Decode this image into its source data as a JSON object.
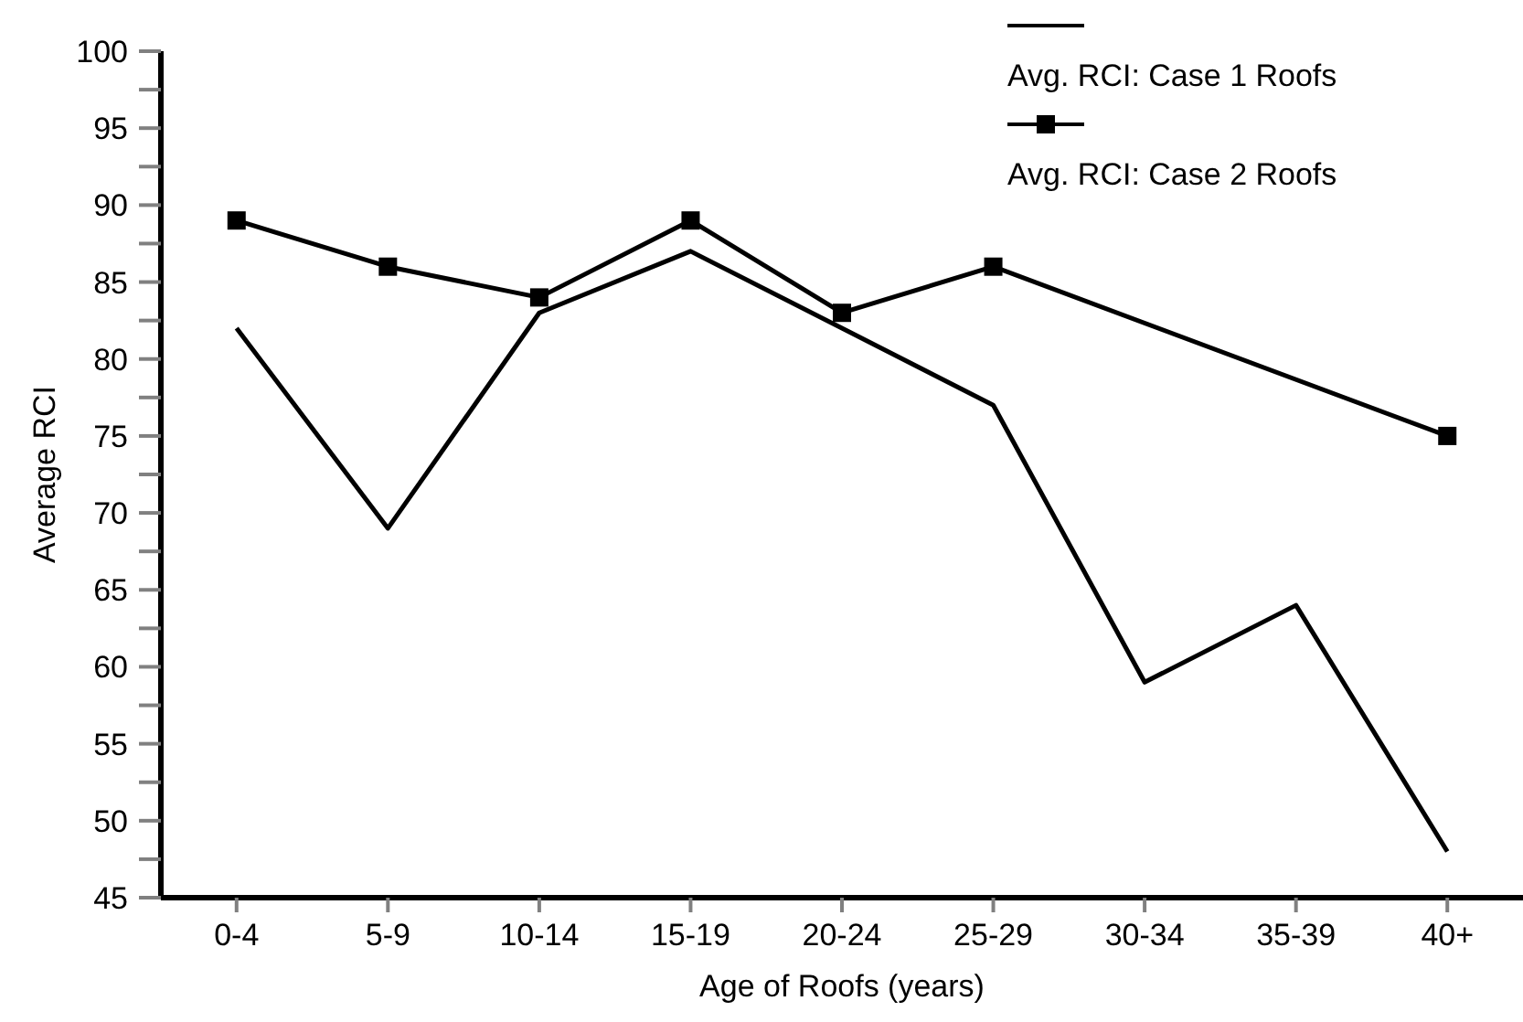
{
  "chart_data": {
    "type": "line",
    "xlabel": "Age of Roofs (years)",
    "ylabel": "Average RCI",
    "categories": [
      "0-4",
      "5-9",
      "10-14",
      "15-19",
      "20-24",
      "25-29",
      "30-34",
      "35-39",
      "40+"
    ],
    "series": [
      {
        "name": "Avg. RCI: Case 1 Roofs",
        "color": "#000000",
        "marker": "none",
        "values": [
          82,
          69,
          83,
          87,
          82,
          77,
          59,
          64,
          48
        ]
      },
      {
        "name": "Avg. RCI: Case 2 Roofs",
        "color": "#000000",
        "marker": "square",
        "values": [
          89,
          86,
          84,
          89,
          83,
          86,
          null,
          null,
          75
        ]
      }
    ],
    "ylim": [
      45,
      100
    ],
    "yticks": [
      45,
      {
        "value": 47.5,
        "label": null
      },
      50,
      {
        "value": 52.5,
        "label": null
      },
      55,
      {
        "value": 57.5,
        "label": null
      },
      60,
      {
        "value": 62.5,
        "label": null
      },
      65,
      {
        "value": 67.5,
        "label": null
      },
      70,
      {
        "value": 72.5,
        "label": null
      },
      75,
      {
        "value": 77.5,
        "label": null
      },
      80,
      {
        "value": 82.5,
        "label": null
      },
      85,
      {
        "value": 87.5,
        "label": null
      },
      90,
      {
        "value": 92.5,
        "label": null
      },
      95,
      {
        "value": 97.5,
        "label": null
      },
      100
    ],
    "legend": "top right"
  }
}
